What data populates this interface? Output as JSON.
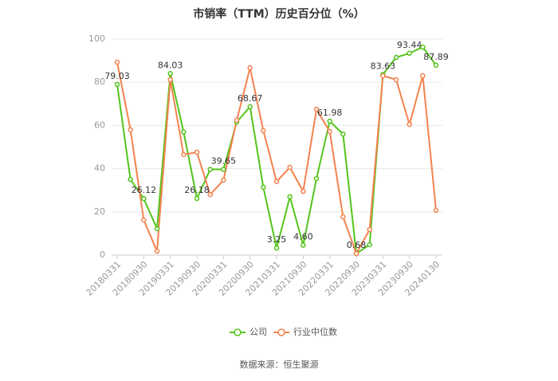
{
  "chart_data": {
    "type": "line",
    "title": "市销率（TTM）历史百分位（%）",
    "categories": [
      "20180331",
      null,
      "20180930",
      null,
      "20190331",
      null,
      "20190930",
      null,
      "20200331",
      null,
      "20200930",
      null,
      "20210331",
      null,
      "20210930",
      null,
      "20220331",
      null,
      "20220930",
      null,
      "20230331",
      null,
      "20230930",
      null,
      "20240130"
    ],
    "series": [
      {
        "name": "公司",
        "color": "#52c41a",
        "values": [
          79.03,
          35,
          26.12,
          12.2,
          84.03,
          57,
          26.18,
          39.65,
          39.65,
          61.6,
          68.67,
          31.4,
          3.25,
          27,
          4.6,
          35.4,
          61.98,
          56,
          0.68,
          4.8,
          83.63,
          91.5,
          93.44,
          96.3,
          87.89
        ],
        "value_labels": [
          "79.03",
          null,
          "26.12",
          null,
          "84.03",
          null,
          "26.18",
          null,
          "39.65",
          null,
          "68.67",
          null,
          "3.25",
          null,
          "4.60",
          null,
          "61.98",
          null,
          "0.68",
          null,
          "83.63",
          null,
          "93.44",
          null,
          "87.89"
        ]
      },
      {
        "name": "行业中位数",
        "color": "#f4824f",
        "values": [
          89.3,
          58,
          16.2,
          1.8,
          81.2,
          46.5,
          47.6,
          28,
          34.7,
          62.4,
          86.7,
          57.6,
          34,
          40.6,
          29.5,
          67.5,
          57.2,
          17.7,
          0.7,
          11.8,
          83,
          81.2,
          60.5,
          83,
          20.7
        ]
      }
    ],
    "ylim": [
      0,
      100
    ],
    "yticks": [
      0,
      20,
      40,
      60,
      80,
      100
    ],
    "grid": true,
    "source": "数据来源：恒生聚源"
  }
}
